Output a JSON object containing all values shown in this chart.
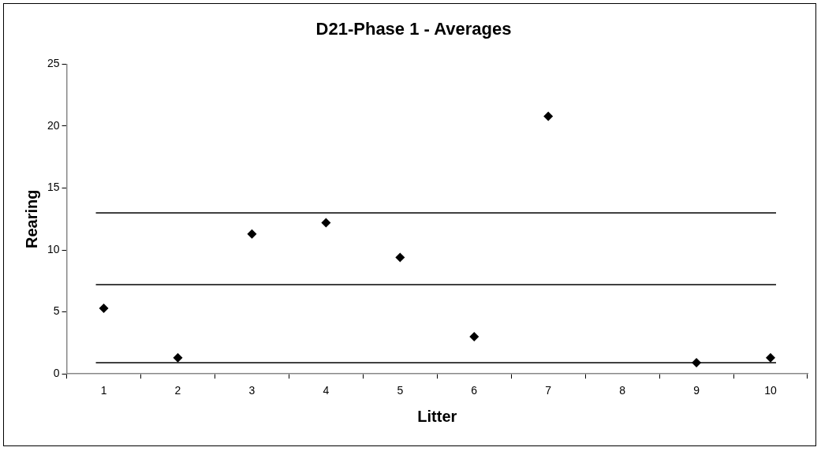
{
  "chart_data": {
    "type": "scatter",
    "title": "D21-Phase 1 - Averages",
    "xlabel": "Litter",
    "ylabel": "Rearing",
    "categories": [
      "1",
      "2",
      "3",
      "4",
      "5",
      "6",
      "7",
      "8",
      "9",
      "10"
    ],
    "series": [
      {
        "color": "#000000",
        "values": [
          5.3,
          1.3,
          11.3,
          12.2,
          9.4,
          3.0,
          20.8,
          null,
          0.9,
          1.3
        ]
      }
    ],
    "ylim": [
      0,
      25
    ],
    "yticks": [
      0,
      5,
      10,
      15,
      20,
      25
    ],
    "grid": false,
    "legend": false,
    "marker": "diamond",
    "ref_lines": [
      {
        "axis": "y",
        "value": 13.0,
        "color": "#000000"
      },
      {
        "axis": "y",
        "value": 7.2,
        "color": "#000000"
      },
      {
        "axis": "y",
        "value": 0.9,
        "color": "#000000"
      }
    ]
  }
}
